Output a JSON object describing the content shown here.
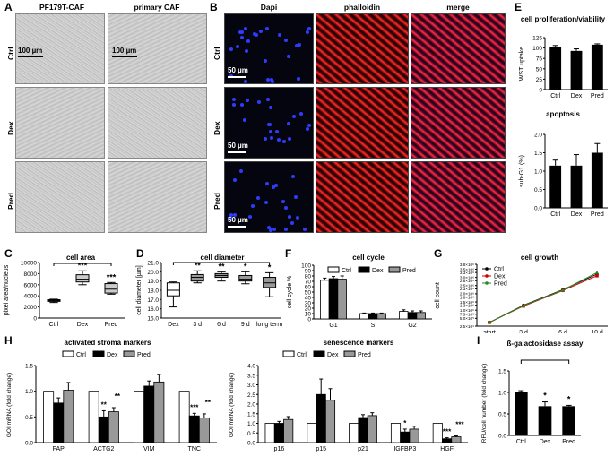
{
  "panels": {
    "A": {
      "letter": "A",
      "headers": [
        "PF179T-CAF",
        "primary CAF"
      ],
      "rows": [
        "Ctrl",
        "Dex",
        "Pred"
      ],
      "scale": "100 µm"
    },
    "B": {
      "letter": "B",
      "headers": [
        "Dapi",
        "phalloidin",
        "merge"
      ],
      "rows": [
        "Ctrl",
        "Dex",
        "Pred"
      ],
      "scale": "50 µm"
    },
    "C": {
      "letter": "C"
    },
    "D": {
      "letter": "D"
    },
    "E": {
      "letter": "E"
    },
    "F": {
      "letter": "F"
    },
    "G": {
      "letter": "G"
    },
    "H": {
      "letter": "H"
    },
    "I": {
      "letter": "I"
    }
  },
  "chart_data": [
    {
      "id": "E1",
      "type": "bar",
      "title": "cell proliferation/viability",
      "ylabel": "WST uptake",
      "categories": [
        "Ctrl",
        "Dex",
        "Pred"
      ],
      "values": [
        102,
        93,
        108
      ],
      "errors": [
        4,
        5,
        2
      ],
      "ylim": [
        0,
        125
      ],
      "yticks": [
        0,
        25,
        50,
        75,
        100,
        125
      ]
    },
    {
      "id": "E2",
      "type": "bar",
      "title": "apoptosis",
      "ylabel": "sub-G1 (%)",
      "categories": [
        "Ctrl",
        "Dex",
        "Pred"
      ],
      "values": [
        1.15,
        1.15,
        1.5
      ],
      "errors": [
        0.15,
        0.3,
        0.25
      ],
      "ylim": [
        0,
        2.0
      ],
      "yticks": [
        "0.0",
        "0.5",
        "1.0",
        "1.5",
        "2.0"
      ]
    },
    {
      "id": "C",
      "type": "box",
      "title": "cell area",
      "ylabel": "pixel area/nucleus",
      "categories": [
        "Ctrl",
        "Dex",
        "Pred"
      ],
      "boxes": [
        [
          2800,
          3000,
          3150,
          3300,
          3400
        ],
        [
          6000,
          6500,
          7000,
          7800,
          8500
        ],
        [
          4300,
          4500,
          5200,
          6200,
          6400
        ]
      ],
      "ylim": [
        0,
        10000
      ],
      "yticks": [
        0,
        2000,
        4000,
        6000,
        8000,
        10000
      ],
      "stars": [
        "",
        "***",
        "***"
      ]
    },
    {
      "id": "D",
      "type": "box",
      "title": "cell diameter",
      "ylabel": "cell diameter [µm]",
      "categories": [
        "Dex",
        "3 d",
        "6 d",
        "9 d",
        "long term"
      ],
      "boxes": [
        [
          16.2,
          17.4,
          18.0,
          18.8,
          18.9
        ],
        [
          18.8,
          19.0,
          19.4,
          19.7,
          20.1
        ],
        [
          19.0,
          19.4,
          19.6,
          19.8,
          20.0
        ],
        [
          18.7,
          19.0,
          19.2,
          19.6,
          20.0
        ],
        [
          17.3,
          18.3,
          18.8,
          19.4,
          19.9
        ]
      ],
      "ylim": [
        15.0,
        21.0
      ],
      "yticks": [
        "15.0",
        "16.0",
        "17.0",
        "18.0",
        "19.0",
        "20.0",
        "21.0"
      ],
      "stars": [
        "",
        "**",
        "**",
        "*",
        "*"
      ]
    },
    {
      "id": "F",
      "type": "bar",
      "title": "cell cycle",
      "ylabel": "cell cycle %",
      "categories": [
        "G1",
        "S",
        "G2"
      ],
      "series": [
        {
          "name": "Ctrl",
          "values": [
            72,
            10,
            14
          ]
        },
        {
          "name": "Dex",
          "values": [
            75,
            10,
            12
          ]
        },
        {
          "name": "Pred",
          "values": [
            74,
            10,
            12
          ]
        }
      ],
      "errors": [
        [
          4,
          1,
          3
        ],
        [
          4,
          1,
          3
        ],
        [
          6,
          1,
          3
        ]
      ],
      "ylim": [
        0,
        100
      ],
      "yticks": [
        0,
        10,
        20,
        30,
        40,
        50,
        60,
        70,
        80,
        90,
        100
      ]
    },
    {
      "id": "G",
      "type": "line",
      "title": "cell growth",
      "ylabel": "cell count",
      "categories": [
        "start",
        "3 d",
        "6 d",
        "10 d"
      ],
      "series": [
        {
          "name": "Ctrl",
          "values": [
            25000,
            130000,
            225000,
            320000
          ]
        },
        {
          "name": "Dex",
          "values": [
            25000,
            125000,
            220000,
            310000
          ]
        },
        {
          "name": "Pred",
          "values": [
            25000,
            128000,
            222000,
            330000
          ]
        }
      ],
      "yticks": [
        "2.5×10⁴",
        "5.0×10⁵",
        "7.5×10⁵",
        "1.0×10⁶",
        "1.3×10⁶",
        "1.5×10⁶",
        "1.8×10⁶",
        "2.0×10⁶",
        "2.3×10⁶",
        "2.5×10⁶",
        "2.8×10⁶",
        "3.0×10⁶",
        "3.3×10⁶",
        "3.5×10⁶",
        "3.8×10⁶"
      ]
    },
    {
      "id": "H1",
      "type": "bar",
      "title": "activated stroma markers",
      "ylabel": "GOI mRNA (fold change)",
      "categories": [
        "FAP",
        "ACTG2",
        "VIM",
        "TNC"
      ],
      "series": [
        {
          "name": "Ctrl",
          "values": [
            1.0,
            1.0,
            1.0,
            1.0
          ]
        },
        {
          "name": "Dex",
          "values": [
            0.77,
            0.5,
            1.1,
            0.52
          ]
        },
        {
          "name": "Pred",
          "values": [
            1.02,
            0.6,
            1.18,
            0.48
          ]
        }
      ],
      "errors": [
        [
          0,
          0,
          0,
          0
        ],
        [
          0.1,
          0.12,
          0.1,
          0.05
        ],
        [
          0.15,
          0.08,
          0.15,
          0.08
        ]
      ],
      "ylim": [
        0,
        1.5
      ],
      "yticks": [
        "0.0",
        "0.5",
        "1.0",
        "1.5"
      ],
      "stars": [
        [
          "",
          "",
          ""
        ],
        [
          "",
          "**",
          "**"
        ],
        [
          "",
          "",
          ""
        ],
        [
          "",
          "***",
          "**"
        ]
      ]
    },
    {
      "id": "H2",
      "type": "bar",
      "title": "senescence markers",
      "ylabel": "GOI mRNA (fold change)",
      "categories": [
        "p16",
        "p15",
        "p21",
        "IGFBP3",
        "HGF"
      ],
      "series": [
        {
          "name": "Ctrl",
          "values": [
            1.0,
            1.0,
            1.0,
            1.0,
            1.0
          ]
        },
        {
          "name": "Dex",
          "values": [
            1.0,
            2.5,
            1.3,
            0.55,
            0.2
          ]
        },
        {
          "name": "Pred",
          "values": [
            1.2,
            2.2,
            1.4,
            0.7,
            0.3
          ]
        }
      ],
      "errors": [
        [
          0,
          0,
          0,
          0,
          0
        ],
        [
          0.1,
          0.8,
          0.15,
          0.15,
          0.05
        ],
        [
          0.15,
          0.6,
          0.15,
          0.15,
          0.05
        ]
      ],
      "ylim": [
        0,
        4.0
      ],
      "yticks": [
        "0.0",
        "0.5",
        "1.0",
        "1.5",
        "2.0",
        "2.5",
        "3.0",
        "3.5",
        "4.0"
      ],
      "stars": [
        [
          "",
          "",
          ""
        ],
        [
          "",
          "",
          ""
        ],
        [
          "",
          "",
          ""
        ],
        [
          "",
          "*",
          ""
        ],
        [
          "",
          "***",
          "***"
        ]
      ]
    },
    {
      "id": "I",
      "type": "bar",
      "title": "ß-galactosidase assay",
      "ylabel": "RFU/cell number (fold change)",
      "categories": [
        "Ctrl",
        "Dex",
        "Pred"
      ],
      "values": [
        1.0,
        0.68,
        0.68
      ],
      "errors": [
        0.04,
        0.1,
        0.02
      ],
      "ylim": [
        0,
        1.5
      ],
      "yticks": [
        "0.0",
        "0.5",
        "1.0",
        "1.5"
      ],
      "stars": [
        "",
        "*",
        "*"
      ]
    }
  ]
}
